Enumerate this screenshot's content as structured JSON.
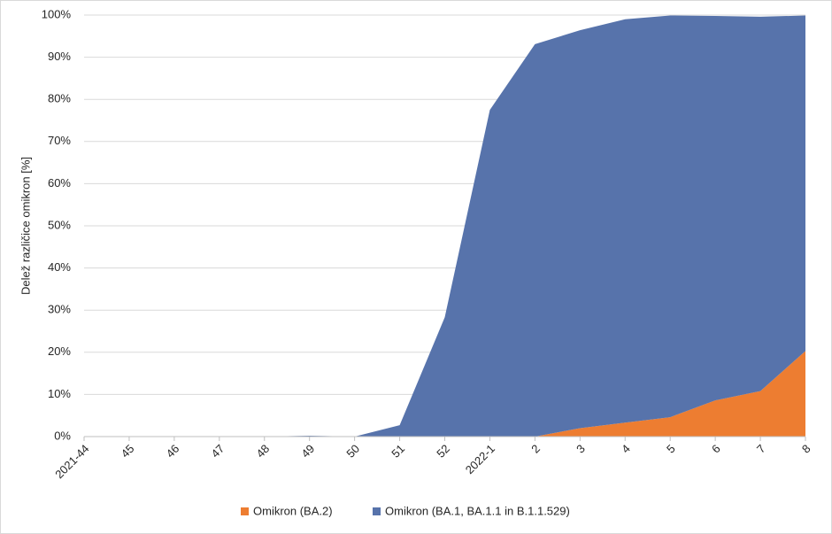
{
  "chart_data": {
    "type": "stacked-area",
    "y_label": "Delež različice omikron [%]",
    "categories": [
      "2021-44",
      "45",
      "46",
      "47",
      "48",
      "49",
      "50",
      "51",
      "52",
      "2022-1",
      "2",
      "3",
      "4",
      "5",
      "6",
      "7",
      "8"
    ],
    "series": [
      {
        "name": "Omikron (BA.2)",
        "color": "#ed7d31",
        "values": [
          0,
          0,
          0,
          0,
          0,
          0,
          0,
          0,
          0,
          0,
          0,
          2,
          3.3,
          4.6,
          8.6,
          10.8,
          20.3
        ]
      },
      {
        "name": "Omikron (BA.1, BA.1.1 in B.1.1.529)",
        "color": "#5773ab",
        "values": [
          0,
          0,
          0,
          0,
          0,
          0.2,
          0,
          2.7,
          28.3,
          77.5,
          93.1,
          94.4,
          95.7,
          95.3,
          91.2,
          88.8,
          79.6
        ]
      }
    ],
    "ylim": [
      0,
      100
    ],
    "yticks": [
      {
        "value": 0,
        "label": "0%"
      },
      {
        "value": 10,
        "label": "10%"
      },
      {
        "value": 20,
        "label": "20%"
      },
      {
        "value": 30,
        "label": "30%"
      },
      {
        "value": 40,
        "label": "40%"
      },
      {
        "value": 50,
        "label": "50%"
      },
      {
        "value": 60,
        "label": "60%"
      },
      {
        "value": 70,
        "label": "70%"
      },
      {
        "value": 80,
        "label": "80%"
      },
      {
        "value": 90,
        "label": "90%"
      },
      {
        "value": 100,
        "label": "100%"
      }
    ],
    "grid": true,
    "legend": "bottom"
  }
}
